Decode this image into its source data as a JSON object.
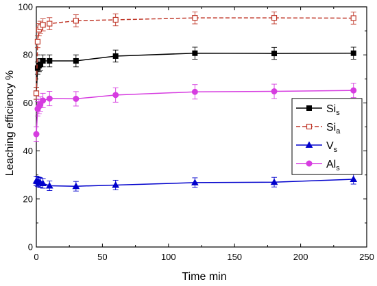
{
  "chart_data": {
    "type": "line",
    "xlabel": "Time min",
    "ylabel": "Leaching efficiency %",
    "xlim": [
      0,
      250
    ],
    "ylim": [
      0,
      100
    ],
    "xticks": [
      "0",
      "50",
      "100",
      "150",
      "200",
      "250"
    ],
    "yticks": [
      "0",
      "20",
      "40",
      "60",
      "80",
      "100"
    ],
    "grid": false,
    "legend_position": "center-right",
    "series": [
      {
        "name": "Si",
        "name_sub": "s",
        "color": "#000000",
        "marker": "filled-square",
        "line": "solid",
        "x": [
          0,
          1,
          2,
          3,
          5,
          10,
          30,
          60,
          120,
          180,
          240
        ],
        "y": [
          64.0,
          74.5,
          75.5,
          76.0,
          77.5,
          77.5,
          77.5,
          79.5,
          80.7,
          80.6,
          80.7
        ],
        "err": [
          2.5,
          2.5,
          2.5,
          2.5,
          2.5,
          2.5,
          2.5,
          2.5,
          2.5,
          2.5,
          2.5
        ]
      },
      {
        "name": "Si",
        "name_sub": "a",
        "color": "#c0392b",
        "marker": "open-square",
        "line": "dashed",
        "x": [
          0,
          1,
          2,
          3,
          5,
          10,
          30,
          60,
          120,
          180,
          240
        ],
        "y": [
          64.0,
          85.5,
          90.5,
          91.5,
          92.5,
          93.0,
          94.2,
          94.6,
          95.4,
          95.4,
          95.3
        ],
        "err": [
          2.5,
          2.5,
          2.5,
          2.5,
          2.5,
          2.5,
          2.5,
          2.5,
          2.5,
          2.5,
          2.5
        ]
      },
      {
        "name": "V",
        "name_sub": "s",
        "color": "#0000cc",
        "marker": "filled-triangle",
        "line": "solid",
        "x": [
          0,
          1,
          2,
          3,
          5,
          10,
          30,
          60,
          120,
          180,
          240
        ],
        "y": [
          27.5,
          27.3,
          27.0,
          26.8,
          26.5,
          25.5,
          25.3,
          25.8,
          26.8,
          27.0,
          28.2
        ],
        "err": [
          2.0,
          2.0,
          2.0,
          2.0,
          2.0,
          2.0,
          2.0,
          2.0,
          2.0,
          2.0,
          2.0
        ]
      },
      {
        "name": "Al",
        "name_sub": "s",
        "color": "#d63ce0",
        "marker": "filled-circle",
        "line": "solid",
        "x": [
          0,
          1,
          2,
          3,
          5,
          10,
          30,
          60,
          120,
          180,
          240
        ],
        "y": [
          47.0,
          57.5,
          58.5,
          59.5,
          61.0,
          61.8,
          61.7,
          63.3,
          64.6,
          64.8,
          65.2
        ],
        "err": [
          3.0,
          3.0,
          3.0,
          3.0,
          3.0,
          3.0,
          3.0,
          3.0,
          3.0,
          3.0,
          3.0
        ]
      }
    ]
  }
}
